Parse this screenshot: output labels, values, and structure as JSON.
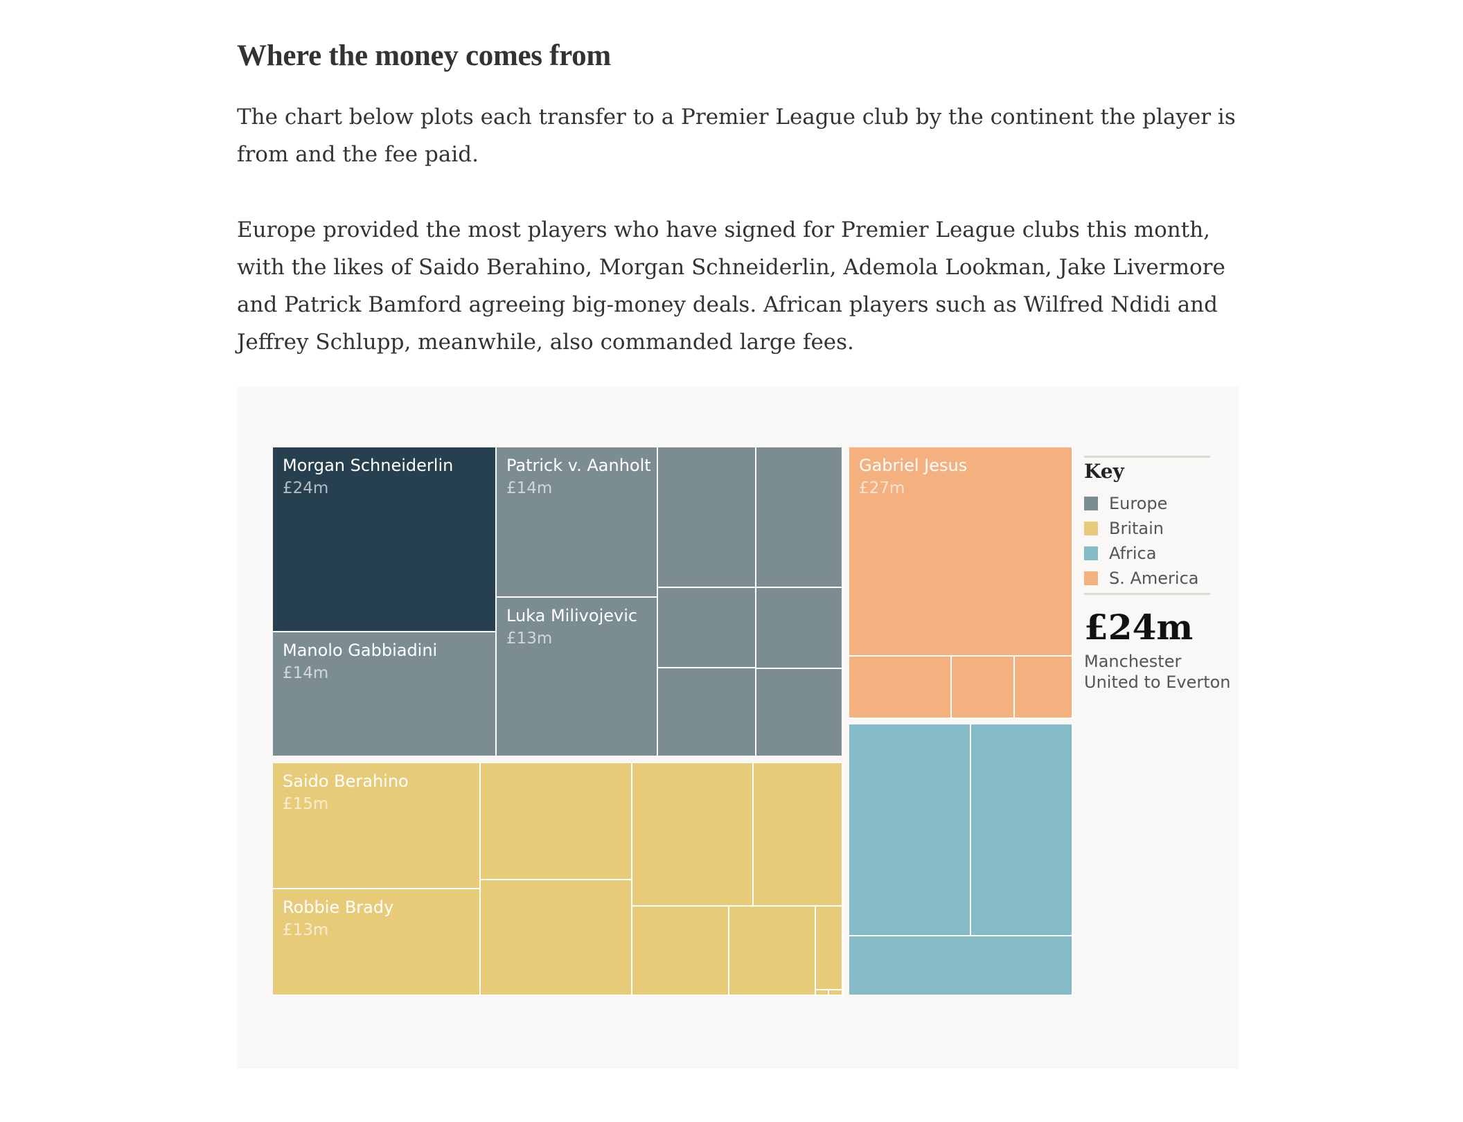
{
  "article": {
    "heading": "Where the money comes from",
    "paragraphs": [
      "The chart below plots each transfer to a Premier League club by the continent the player is from and the fee paid.",
      "Europe provided the most players who have signed for Premier League clubs this month, with the likes of Saido Berahino, Morgan Schneiderlin, Ademola Lookman, Jake Livermore and Patrick Bamford agreeing big-money deals. African players such as Wilfred Ndidi and Jeffrey Schlupp, meanwhile, also commanded large fees."
    ]
  },
  "chart_data": {
    "type": "treemap",
    "highlight_color": "#26404f",
    "groups": [
      {
        "name": "Europe",
        "color": "#7b8c93",
        "tiles": [
          {
            "label": "Morgan Schneiderlin",
            "value": "£24m",
            "highlighted": true
          },
          {
            "label": "Manolo Gabbiadini",
            "value": "£14m"
          },
          {
            "label": "Patrick v. Aanholt",
            "value": "£14m"
          },
          {
            "label": "Luka Milivojevic",
            "value": "£13m"
          },
          {
            "label": "",
            "value": ""
          },
          {
            "label": "",
            "value": ""
          },
          {
            "label": "",
            "value": ""
          },
          {
            "label": "",
            "value": ""
          },
          {
            "label": "",
            "value": ""
          },
          {
            "label": "",
            "value": ""
          }
        ]
      },
      {
        "name": "Britain",
        "color": "#e8cb79",
        "tiles": [
          {
            "label": "Saido Berahino",
            "value": "£15m"
          },
          {
            "label": "Robbie Brady",
            "value": "£13m"
          },
          {
            "label": "",
            "value": ""
          },
          {
            "label": "",
            "value": ""
          },
          {
            "label": "",
            "value": ""
          },
          {
            "label": "",
            "value": ""
          },
          {
            "label": "",
            "value": ""
          },
          {
            "label": "",
            "value": ""
          },
          {
            "label": "",
            "value": ""
          },
          {
            "label": "",
            "value": ""
          },
          {
            "label": "",
            "value": ""
          }
        ]
      },
      {
        "name": "S. America",
        "color": "#f5b07f",
        "tiles": [
          {
            "label": "Gabriel Jesus",
            "value": "£27m"
          },
          {
            "label": "",
            "value": ""
          },
          {
            "label": "",
            "value": ""
          },
          {
            "label": "",
            "value": ""
          }
        ]
      },
      {
        "name": "Africa",
        "color": "#84bbc6",
        "tiles": [
          {
            "label": "",
            "value": ""
          },
          {
            "label": "",
            "value": ""
          },
          {
            "label": "",
            "value": ""
          }
        ]
      }
    ],
    "key": {
      "title": "Key",
      "items": [
        {
          "label": "Europe",
          "color": "#7b8c93"
        },
        {
          "label": "Britain",
          "color": "#e8cb79"
        },
        {
          "label": "Africa",
          "color": "#84bbc6"
        },
        {
          "label": "S. America",
          "color": "#f5b07f"
        }
      ]
    },
    "selected": {
      "value": "£24m",
      "detail": "Manchester United to Everton"
    }
  }
}
